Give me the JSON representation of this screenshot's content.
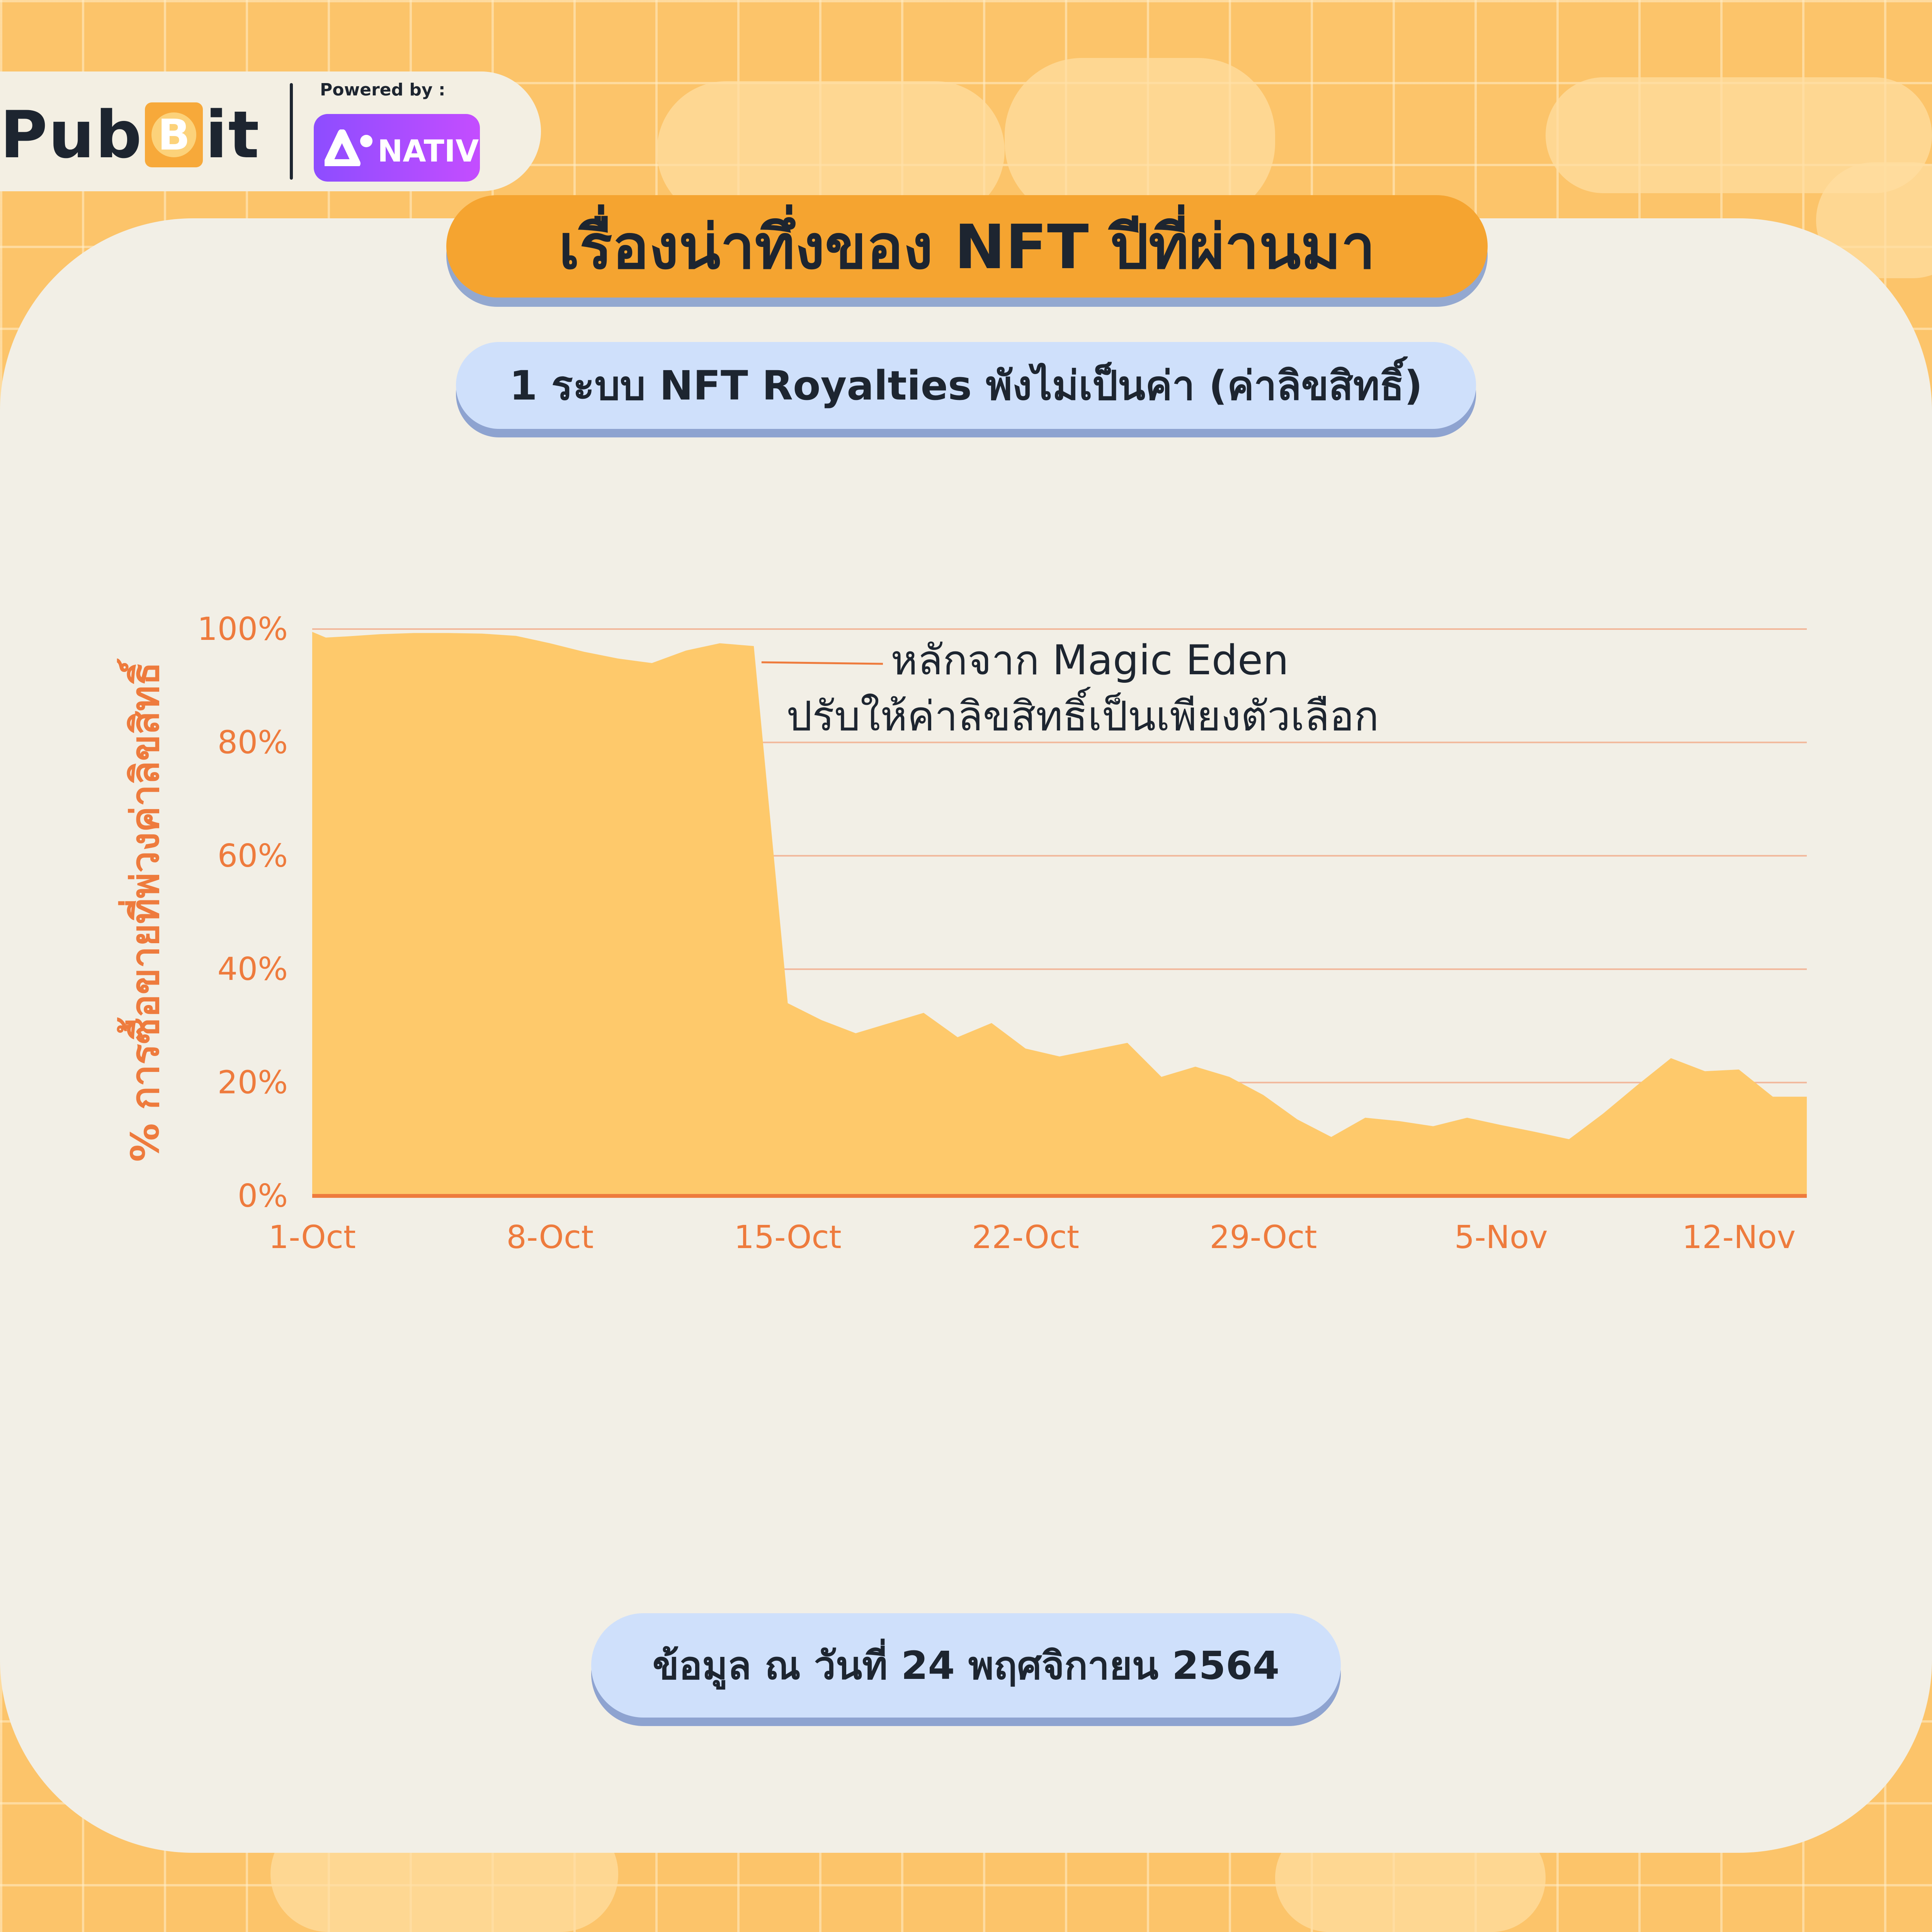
{
  "header": {
    "brand": "PubBit",
    "brand_left": "Pub",
    "brand_right": "it",
    "powered_by": "Powered by :",
    "partner": "NATIV"
  },
  "title": "เรื่องน่าทึ่งของ NFT ปีที่ผ่านมา",
  "subtitle": "1 ระบบ NFT Royalties พังไม่เป็นค่า (ค่าลิขสิทธิ์)",
  "footer": "ข้อมูล ณ วันที่ 24 พฤศจิกายน 2564",
  "colors": {
    "background": "#fcc46a",
    "card": "#f2efe6",
    "title_pill": "#f5a430",
    "sub_pill": "#cfe0fb",
    "area_fill": "#fec96b",
    "axis": "#ee7b3d",
    "text": "#1d2530"
  },
  "chart_data": {
    "type": "area",
    "title": "",
    "xlabel": "",
    "ylabel": "% การซื้อขายที่พ่วงค่าลิขสิทธิ์",
    "ylim": [
      0,
      100
    ],
    "xlim": [
      "1-Oct",
      "14-Nov"
    ],
    "grid": true,
    "x_ticks": [
      "1-Oct",
      "8-Oct",
      "15-Oct",
      "22-Oct",
      "29-Oct",
      "5-Nov",
      "12-Nov"
    ],
    "y_ticks": [
      "0%",
      "20%",
      "40%",
      "60%",
      "80%",
      "100%"
    ],
    "series": [
      {
        "x": [
          "1-Oct",
          "1-Oct",
          "2-Oct",
          "3-Oct",
          "4-Oct",
          "5-Oct",
          "6-Oct",
          "7-Oct",
          "8-Oct",
          "9-Oct",
          "10-Oct",
          "11-Oct",
          "12-Oct",
          "13-Oct",
          "14-Oct",
          "15-Oct",
          "16-Oct",
          "17-Oct",
          "18-Oct",
          "19-Oct",
          "20-Oct",
          "21-Oct",
          "22-Oct",
          "23-Oct",
          "24-Oct",
          "25-Oct",
          "26-Oct",
          "27-Oct",
          "28-Oct",
          "29-Oct",
          "30-Oct",
          "31-Oct",
          "1-Nov",
          "2-Nov",
          "3-Nov",
          "4-Nov",
          "5-Nov",
          "6-Nov",
          "7-Nov",
          "8-Nov",
          "9-Nov",
          "10-Nov",
          "11-Nov",
          "12-Nov",
          "13-Nov",
          "14-Nov"
        ],
        "values": [
          99.5,
          98.5,
          98.7,
          99.1,
          99.3,
          99.3,
          99.2,
          98.8,
          97.5,
          96.0,
          94.8,
          94.0,
          96.2,
          97.5,
          97.0,
          34.0,
          31.0,
          28.7,
          30.5,
          32.3,
          28.0,
          30.5,
          26.0,
          24.6,
          25.8,
          27.0,
          21.0,
          22.8,
          21.0,
          17.8,
          13.5,
          10.4,
          13.8,
          13.2,
          12.3,
          13.8,
          12.5,
          11.3,
          10.0,
          14.5,
          19.5,
          24.3,
          22.0,
          22.3,
          17.5,
          17.5
        ]
      }
    ],
    "annotation": {
      "x": "14-Oct",
      "y": 97,
      "lines": [
        "หลักจาก Magic Eden",
        "ปรับให้ค่าลิขสิทธิ์เป็นเพียงตัวเลือก"
      ]
    }
  }
}
